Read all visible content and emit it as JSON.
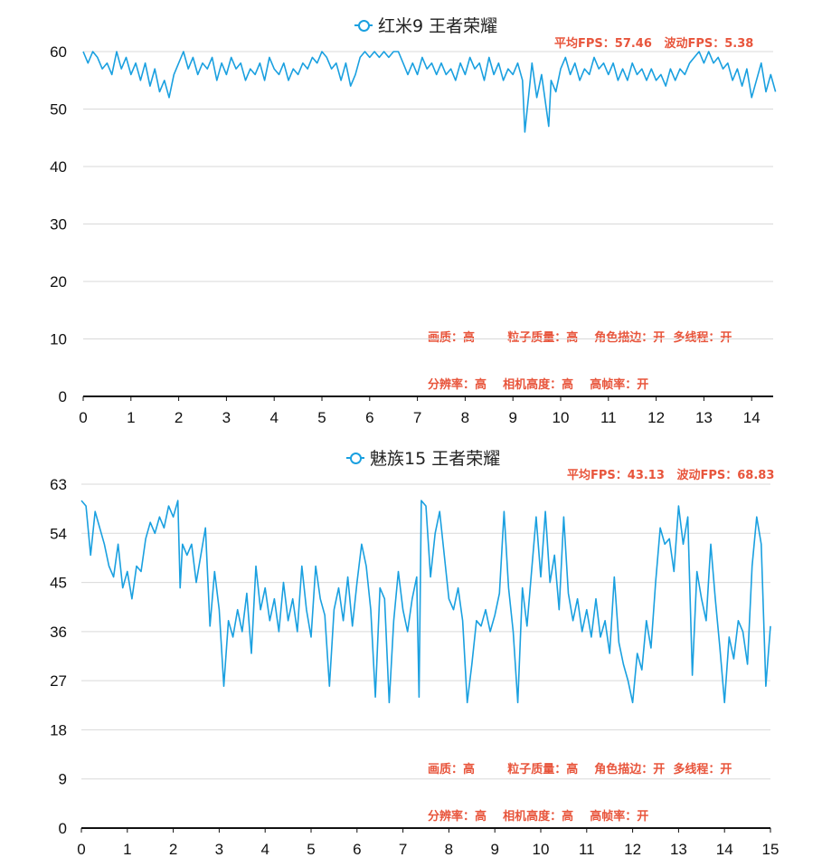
{
  "colors": {
    "line": "#1aa0e0",
    "annotation": "#e8553c",
    "grid": "#d9d9d9",
    "axis": "#111111"
  },
  "chart_data": [
    {
      "type": "line",
      "series": [
        {
          "name": "红米9 王者荣耀"
        }
      ],
      "stats": "平均FPS：57.46   波动FPS：5.38",
      "settings": [
        "画质：高        粒子质量：高    角色描边：开  多线程：开",
        "分辨率：高    相机高度：高    高帧率：开"
      ],
      "xlim": [
        0,
        14.5
      ],
      "ylim": [
        0,
        60
      ],
      "xticks": [
        0,
        1,
        2,
        3,
        4,
        5,
        6,
        7,
        8,
        9,
        10,
        11,
        12,
        13,
        14
      ],
      "yticks": [
        0,
        10,
        20,
        30,
        40,
        50,
        60
      ],
      "grid": true,
      "points": [
        [
          0,
          60
        ],
        [
          0.1,
          58
        ],
        [
          0.2,
          60
        ],
        [
          0.3,
          59
        ],
        [
          0.4,
          57
        ],
        [
          0.5,
          58
        ],
        [
          0.6,
          56
        ],
        [
          0.7,
          60
        ],
        [
          0.8,
          57
        ],
        [
          0.9,
          59
        ],
        [
          1,
          56
        ],
        [
          1.1,
          58
        ],
        [
          1.2,
          55
        ],
        [
          1.3,
          58
        ],
        [
          1.4,
          54
        ],
        [
          1.5,
          57
        ],
        [
          1.6,
          53
        ],
        [
          1.7,
          55
        ],
        [
          1.8,
          52
        ],
        [
          1.9,
          56
        ],
        [
          2,
          58
        ],
        [
          2.1,
          60
        ],
        [
          2.2,
          57
        ],
        [
          2.3,
          59
        ],
        [
          2.4,
          56
        ],
        [
          2.5,
          58
        ],
        [
          2.6,
          57
        ],
        [
          2.7,
          59
        ],
        [
          2.8,
          55
        ],
        [
          2.9,
          58
        ],
        [
          3,
          56
        ],
        [
          3.1,
          59
        ],
        [
          3.2,
          57
        ],
        [
          3.3,
          58
        ],
        [
          3.4,
          55
        ],
        [
          3.5,
          57
        ],
        [
          3.6,
          56
        ],
        [
          3.7,
          58
        ],
        [
          3.8,
          55
        ],
        [
          3.9,
          59
        ],
        [
          4,
          57
        ],
        [
          4.1,
          56
        ],
        [
          4.2,
          58
        ],
        [
          4.3,
          55
        ],
        [
          4.4,
          57
        ],
        [
          4.5,
          56
        ],
        [
          4.6,
          58
        ],
        [
          4.7,
          57
        ],
        [
          4.8,
          59
        ],
        [
          4.9,
          58
        ],
        [
          5,
          60
        ],
        [
          5.1,
          59
        ],
        [
          5.2,
          57
        ],
        [
          5.3,
          58
        ],
        [
          5.4,
          55
        ],
        [
          5.5,
          58
        ],
        [
          5.6,
          54
        ],
        [
          5.7,
          56
        ],
        [
          5.8,
          59
        ],
        [
          5.9,
          60
        ],
        [
          6,
          59
        ],
        [
          6.1,
          60
        ],
        [
          6.2,
          59
        ],
        [
          6.3,
          60
        ],
        [
          6.4,
          59
        ],
        [
          6.5,
          60
        ],
        [
          6.6,
          60
        ],
        [
          6.7,
          58
        ],
        [
          6.8,
          56
        ],
        [
          6.9,
          58
        ],
        [
          7,
          56
        ],
        [
          7.1,
          59
        ],
        [
          7.2,
          57
        ],
        [
          7.3,
          58
        ],
        [
          7.4,
          56
        ],
        [
          7.5,
          58
        ],
        [
          7.6,
          56
        ],
        [
          7.7,
          57
        ],
        [
          7.8,
          55
        ],
        [
          7.9,
          58
        ],
        [
          8,
          56
        ],
        [
          8.1,
          59
        ],
        [
          8.2,
          57
        ],
        [
          8.3,
          58
        ],
        [
          8.4,
          55
        ],
        [
          8.5,
          59
        ],
        [
          8.6,
          56
        ],
        [
          8.7,
          58
        ],
        [
          8.8,
          55
        ],
        [
          8.9,
          57
        ],
        [
          9,
          56
        ],
        [
          9.1,
          58
        ],
        [
          9.2,
          55
        ],
        [
          9.25,
          46
        ],
        [
          9.35,
          54
        ],
        [
          9.4,
          58
        ],
        [
          9.5,
          52
        ],
        [
          9.6,
          56
        ],
        [
          9.7,
          50
        ],
        [
          9.75,
          47
        ],
        [
          9.8,
          55
        ],
        [
          9.9,
          53
        ],
        [
          10,
          57
        ],
        [
          10.1,
          59
        ],
        [
          10.2,
          56
        ],
        [
          10.3,
          58
        ],
        [
          10.4,
          55
        ],
        [
          10.5,
          57
        ],
        [
          10.6,
          56
        ],
        [
          10.7,
          59
        ],
        [
          10.8,
          57
        ],
        [
          10.9,
          58
        ],
        [
          11,
          56
        ],
        [
          11.1,
          58
        ],
        [
          11.2,
          55
        ],
        [
          11.3,
          57
        ],
        [
          11.4,
          55
        ],
        [
          11.5,
          58
        ],
        [
          11.6,
          56
        ],
        [
          11.7,
          57
        ],
        [
          11.8,
          55
        ],
        [
          11.9,
          57
        ],
        [
          12,
          55
        ],
        [
          12.1,
          56
        ],
        [
          12.2,
          54
        ],
        [
          12.3,
          57
        ],
        [
          12.4,
          55
        ],
        [
          12.5,
          57
        ],
        [
          12.6,
          56
        ],
        [
          12.7,
          58
        ],
        [
          12.8,
          59
        ],
        [
          12.9,
          60
        ],
        [
          13,
          58
        ],
        [
          13.1,
          60
        ],
        [
          13.2,
          58
        ],
        [
          13.3,
          59
        ],
        [
          13.4,
          57
        ],
        [
          13.5,
          58
        ],
        [
          13.6,
          55
        ],
        [
          13.7,
          57
        ],
        [
          13.8,
          54
        ],
        [
          13.9,
          57
        ],
        [
          14,
          52
        ],
        [
          14.1,
          55
        ],
        [
          14.2,
          58
        ],
        [
          14.3,
          53
        ],
        [
          14.4,
          56
        ],
        [
          14.5,
          53
        ]
      ]
    },
    {
      "type": "line",
      "series": [
        {
          "name": "魅族15 王者荣耀"
        }
      ],
      "stats": "平均FPS：43.13   波动FPS：68.83",
      "settings": [
        "画质：高        粒子质量：高    角色描边：开  多线程：开",
        "分辨率：高    相机高度：高    高帧率：开"
      ],
      "xlim": [
        0,
        15
      ],
      "ylim": [
        0,
        63
      ],
      "xticks": [
        0,
        1,
        2,
        3,
        4,
        5,
        6,
        7,
        8,
        9,
        10,
        11,
        12,
        13,
        14,
        15
      ],
      "yticks": [
        0,
        9,
        18,
        27,
        36,
        45,
        54,
        63
      ],
      "grid": true,
      "points": [
        [
          0,
          60
        ],
        [
          0.1,
          59
        ],
        [
          0.2,
          50
        ],
        [
          0.3,
          58
        ],
        [
          0.4,
          55
        ],
        [
          0.5,
          52
        ],
        [
          0.6,
          48
        ],
        [
          0.7,
          46
        ],
        [
          0.8,
          52
        ],
        [
          0.9,
          44
        ],
        [
          1,
          47
        ],
        [
          1.1,
          42
        ],
        [
          1.2,
          48
        ],
        [
          1.3,
          47
        ],
        [
          1.4,
          53
        ],
        [
          1.5,
          56
        ],
        [
          1.6,
          54
        ],
        [
          1.7,
          57
        ],
        [
          1.8,
          55
        ],
        [
          1.9,
          59
        ],
        [
          2,
          57
        ],
        [
          2.1,
          60
        ],
        [
          2.15,
          44
        ],
        [
          2.2,
          52
        ],
        [
          2.3,
          50
        ],
        [
          2.4,
          52
        ],
        [
          2.5,
          45
        ],
        [
          2.6,
          50
        ],
        [
          2.7,
          55
        ],
        [
          2.8,
          37
        ],
        [
          2.9,
          47
        ],
        [
          3,
          40
        ],
        [
          3.1,
          26
        ],
        [
          3.2,
          38
        ],
        [
          3.3,
          35
        ],
        [
          3.4,
          40
        ],
        [
          3.5,
          36
        ],
        [
          3.6,
          43
        ],
        [
          3.7,
          32
        ],
        [
          3.8,
          48
        ],
        [
          3.9,
          40
        ],
        [
          4,
          44
        ],
        [
          4.1,
          38
        ],
        [
          4.2,
          42
        ],
        [
          4.3,
          36
        ],
        [
          4.4,
          45
        ],
        [
          4.5,
          38
        ],
        [
          4.6,
          42
        ],
        [
          4.7,
          36
        ],
        [
          4.8,
          48
        ],
        [
          4.9,
          40
        ],
        [
          5,
          35
        ],
        [
          5.1,
          48
        ],
        [
          5.2,
          42
        ],
        [
          5.3,
          39
        ],
        [
          5.4,
          26
        ],
        [
          5.5,
          40
        ],
        [
          5.6,
          44
        ],
        [
          5.7,
          38
        ],
        [
          5.8,
          46
        ],
        [
          5.9,
          37
        ],
        [
          6,
          45
        ],
        [
          6.1,
          52
        ],
        [
          6.2,
          48
        ],
        [
          6.3,
          40
        ],
        [
          6.4,
          24
        ],
        [
          6.5,
          44
        ],
        [
          6.6,
          42
        ],
        [
          6.7,
          23
        ],
        [
          6.8,
          38
        ],
        [
          6.9,
          47
        ],
        [
          7,
          40
        ],
        [
          7.1,
          36
        ],
        [
          7.2,
          42
        ],
        [
          7.3,
          46
        ],
        [
          7.35,
          24
        ],
        [
          7.4,
          60
        ],
        [
          7.5,
          59
        ],
        [
          7.6,
          46
        ],
        [
          7.7,
          54
        ],
        [
          7.8,
          58
        ],
        [
          7.9,
          50
        ],
        [
          8,
          42
        ],
        [
          8.1,
          40
        ],
        [
          8.2,
          44
        ],
        [
          8.3,
          38
        ],
        [
          8.4,
          23
        ],
        [
          8.5,
          30
        ],
        [
          8.6,
          38
        ],
        [
          8.7,
          37
        ],
        [
          8.8,
          40
        ],
        [
          8.9,
          36
        ],
        [
          9,
          39
        ],
        [
          9.1,
          43
        ],
        [
          9.2,
          58
        ],
        [
          9.3,
          44
        ],
        [
          9.4,
          36
        ],
        [
          9.5,
          23
        ],
        [
          9.6,
          44
        ],
        [
          9.7,
          37
        ],
        [
          9.8,
          47
        ],
        [
          9.9,
          57
        ],
        [
          10,
          46
        ],
        [
          10.1,
          58
        ],
        [
          10.2,
          45
        ],
        [
          10.3,
          50
        ],
        [
          10.4,
          40
        ],
        [
          10.5,
          57
        ],
        [
          10.6,
          43
        ],
        [
          10.7,
          38
        ],
        [
          10.8,
          42
        ],
        [
          10.9,
          36
        ],
        [
          11,
          40
        ],
        [
          11.1,
          35
        ],
        [
          11.2,
          42
        ],
        [
          11.3,
          35
        ],
        [
          11.4,
          38
        ],
        [
          11.5,
          32
        ],
        [
          11.6,
          46
        ],
        [
          11.7,
          34
        ],
        [
          11.8,
          30
        ],
        [
          11.9,
          27
        ],
        [
          12,
          23
        ],
        [
          12.1,
          32
        ],
        [
          12.2,
          29
        ],
        [
          12.3,
          38
        ],
        [
          12.4,
          33
        ],
        [
          12.5,
          45
        ],
        [
          12.6,
          55
        ],
        [
          12.7,
          52
        ],
        [
          12.8,
          53
        ],
        [
          12.9,
          47
        ],
        [
          13,
          59
        ],
        [
          13.1,
          52
        ],
        [
          13.2,
          57
        ],
        [
          13.3,
          28
        ],
        [
          13.4,
          47
        ],
        [
          13.5,
          42
        ],
        [
          13.6,
          38
        ],
        [
          13.7,
          52
        ],
        [
          13.8,
          42
        ],
        [
          13.9,
          33
        ],
        [
          14,
          23
        ],
        [
          14.1,
          35
        ],
        [
          14.2,
          31
        ],
        [
          14.3,
          38
        ],
        [
          14.4,
          36
        ],
        [
          14.5,
          30
        ],
        [
          14.6,
          48
        ],
        [
          14.7,
          57
        ],
        [
          14.8,
          52
        ],
        [
          14.9,
          26
        ],
        [
          15,
          37
        ]
      ]
    }
  ]
}
